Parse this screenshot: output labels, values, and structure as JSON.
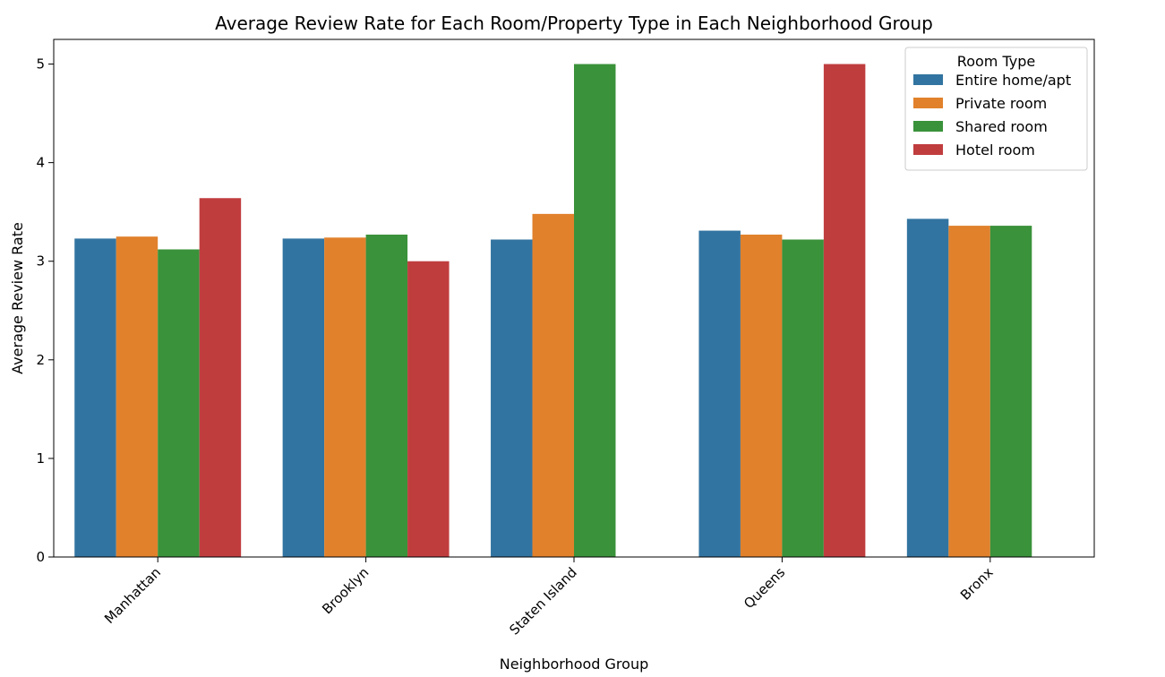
{
  "chart_data": {
    "type": "bar",
    "title": "Average Review Rate for Each Room/Property Type in Each Neighborhood Group",
    "xlabel": "Neighborhood Group",
    "ylabel": "Average Review Rate",
    "categories": [
      "Manhattan",
      "Brooklyn",
      "Staten Island",
      "Queens",
      "Bronx"
    ],
    "series": [
      {
        "name": "Entire home/apt",
        "color": "#3274a1",
        "values": [
          3.23,
          3.23,
          3.22,
          3.31,
          3.43
        ]
      },
      {
        "name": "Private room",
        "color": "#e1812c",
        "values": [
          3.25,
          3.24,
          3.48,
          3.27,
          3.36
        ]
      },
      {
        "name": "Shared room",
        "color": "#3a923a",
        "values": [
          3.12,
          3.27,
          5.0,
          3.22,
          3.36
        ]
      },
      {
        "name": "Hotel room",
        "color": "#c03d3e",
        "values": [
          3.64,
          3.0,
          null,
          5.0,
          null
        ]
      }
    ],
    "ylim": [
      0,
      5.25
    ],
    "yticks": [
      "0",
      "1",
      "2",
      "3",
      "4",
      "5"
    ],
    "grid": false,
    "legend": {
      "title": "Room Type",
      "placement": "top-right"
    }
  }
}
